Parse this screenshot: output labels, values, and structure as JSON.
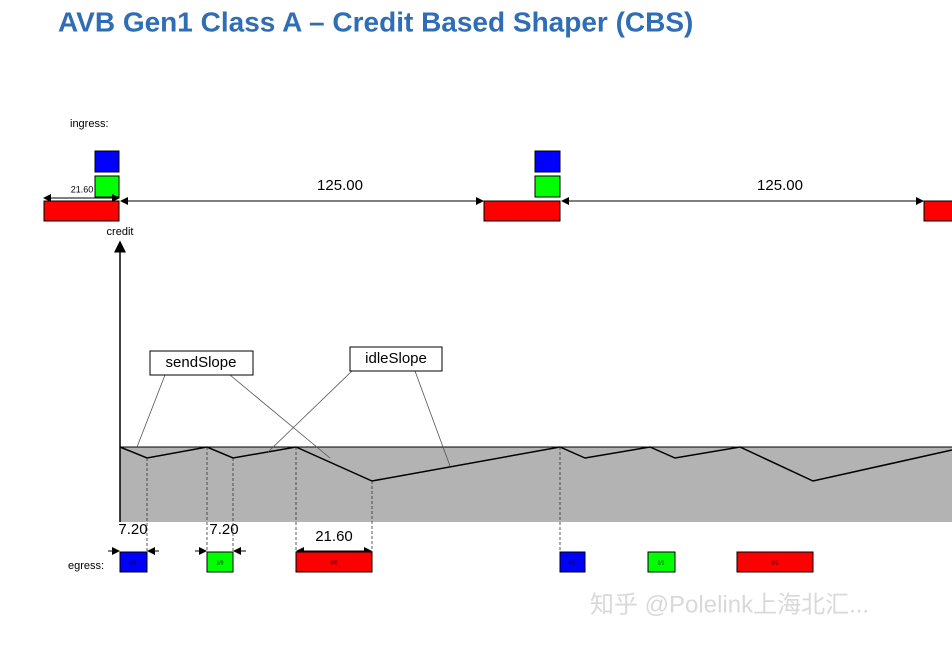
{
  "header": {
    "title": "AVB Gen1 Class A – Credit Based Shaper (CBS)"
  },
  "ingress": {
    "label": "ingress:",
    "frame_length": "21.60",
    "intervals": [
      "125.00",
      "125.00"
    ]
  },
  "credit": {
    "label": "credit",
    "send_slope": "sendSlope",
    "idle_slope": "idleSlope"
  },
  "egress": {
    "label": "egress:",
    "durations": [
      "7.20",
      "7.20",
      "21.60"
    ],
    "frames": [
      "0/0",
      "1/0",
      "0/0",
      "0/1",
      "1/1",
      "0/1"
    ]
  },
  "watermark": "知乎 @Polelink上海北汇..."
}
